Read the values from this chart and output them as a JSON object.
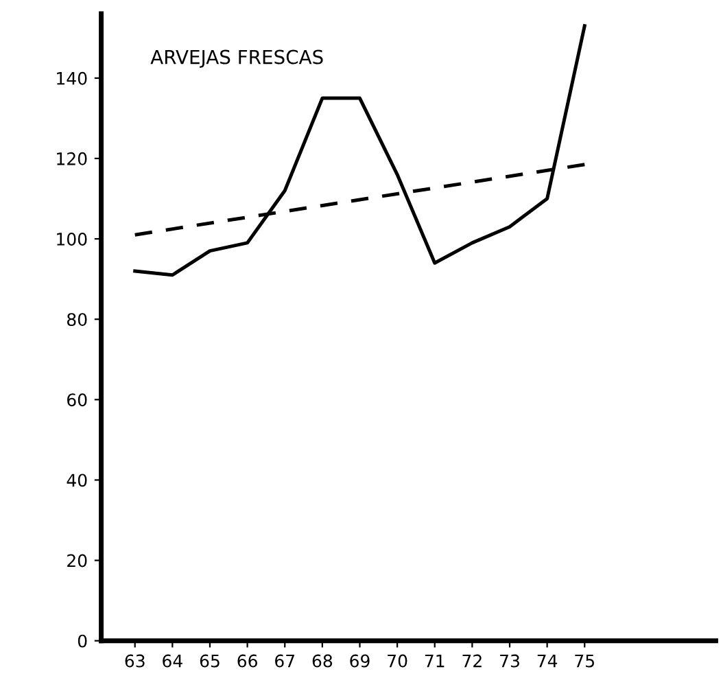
{
  "chart_data": {
    "type": "line",
    "title": "ARVEJAS FRESCAS",
    "categories": [
      "63",
      "64",
      "65",
      "66",
      "67",
      "68",
      "69",
      "70",
      "71",
      "72",
      "73",
      "74",
      "75"
    ],
    "series": [
      {
        "color": "#000000",
        "values": [
          92,
          91,
          97,
          99,
          112,
          135,
          135,
          116,
          94,
          99,
          103,
          110,
          153
        ],
        "line_style": "solid"
      },
      {
        "color": "#000000",
        "type": "line",
        "x": [
          "63",
          "75"
        ],
        "values": [
          101,
          118.5
        ],
        "line_style": "dashed"
      }
    ],
    "ylim": [
      0,
      156
    ],
    "yticks": [
      0,
      20,
      40,
      60,
      80,
      100,
      120,
      140
    ],
    "grid": false,
    "legend": false,
    "marker": "none"
  }
}
